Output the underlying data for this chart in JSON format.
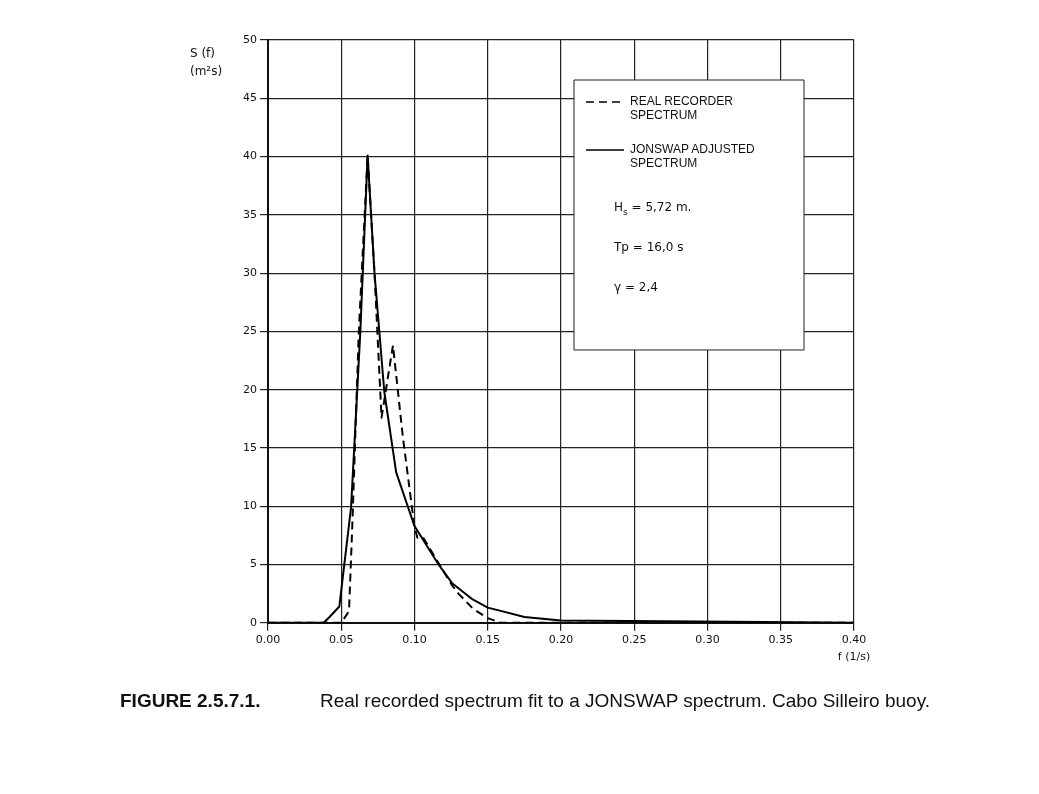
{
  "chart_data": {
    "type": "line",
    "xlabel": "f (1/s)",
    "ylabel": "S (f) (m²s)",
    "series": [
      {
        "name": "REAL RECORDER SPECTRUM",
        "color": "#000000",
        "line_style": "dashed",
        "x": [
          0,
          0.05,
          0.0553,
          0.0575,
          0.062,
          0.068,
          0.0727,
          0.0775,
          0.0853,
          0.092,
          0.1,
          0.102,
          0.106,
          0.1175,
          0.1257,
          0.13,
          0.14,
          0.15,
          0.159,
          0.2,
          0.4
        ],
        "values": [
          0,
          0,
          1.0,
          8.2,
          25,
          40.1,
          30,
          17.6,
          23.8,
          16,
          8.2,
          7.3,
          7.3,
          4.9,
          3.2,
          2.5,
          1.2,
          0.4,
          0,
          0,
          0
        ]
      },
      {
        "name": "JONSWAP ADJUSTED SPECTRUM",
        "color": "#000000",
        "line_style": "solid",
        "x": [
          0,
          0.038,
          0.042,
          0.0487,
          0.0567,
          0.063,
          0.068,
          0.0727,
          0.0794,
          0.0875,
          0.1,
          0.1164,
          0.1257,
          0.1397,
          0.15,
          0.175,
          0.2,
          0.4
        ],
        "values": [
          0,
          0,
          0.5,
          1.4,
          9.9,
          24.9,
          40.1,
          30,
          19.8,
          12.9,
          8.3,
          5.0,
          3.4,
          2.0,
          1.3,
          0.5,
          0.2,
          0
        ]
      }
    ],
    "xlim": [
      0,
      0.4
    ],
    "xticks": [
      {
        "value": 0,
        "label": "0.00"
      },
      {
        "value": 0.05,
        "label": "0.05"
      },
      {
        "value": 0.1,
        "label": "0.10"
      },
      {
        "value": 0.15,
        "label": "0.15"
      },
      {
        "value": 0.2,
        "label": "0.20"
      },
      {
        "value": 0.25,
        "label": "0.25"
      },
      {
        "value": 0.3,
        "label": "0.30"
      },
      {
        "value": 0.35,
        "label": "0.35"
      },
      {
        "value": 0.4,
        "label": "0.40"
      }
    ],
    "ylim": [
      0,
      50
    ],
    "yticks": [
      0,
      5,
      10,
      15,
      20,
      25,
      30,
      35,
      40,
      45,
      50
    ],
    "grid": true,
    "legend": "top right",
    "marker": "none",
    "annotations": [
      "H$_{s}$ = 5,72 m.",
      "Tp = 16,0 s",
      "γ = 2,4",
      "FIGURE 2.5.7.1.",
      "Real recorded spectrum fit to a JONSWAP spectrum. Cabo Silleiro buoy."
    ]
  }
}
